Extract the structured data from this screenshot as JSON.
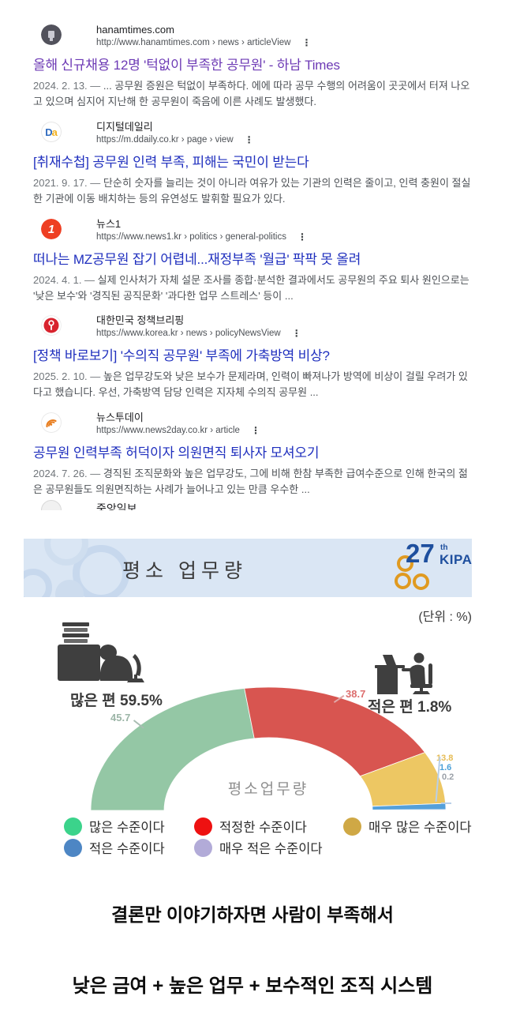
{
  "search": {
    "more_menu_glyph": "⋮",
    "results": [
      {
        "source": "hanamtimes.com",
        "url": "http://www.hanamtimes.com › news › articleView",
        "favicon": "hanamtimes-favicon",
        "visited": true,
        "title": "올해 신규채용 12명 '턱없이 부족한 공무원' - 하남 Times",
        "date": "2024. 2. 13.",
        "snippet": "... 공무원 증원은 턱없이 부족하다. 에에 따라 공무 수행의 어려움이 곳곳에서 터져 나오고 있으며 심지어 지난해 한 공무원이 죽음에 이른 사례도 발생했다."
      },
      {
        "source": "디지털데일리",
        "url": "https://m.ddaily.co.kr › page › view",
        "favicon": "ddaily-favicon",
        "visited": false,
        "title": "[취재수첩] 공무원 인력 부족, 피해는 국민이 받는다",
        "date": "2021. 9. 17.",
        "snippet": "단순히 숫자를 늘리는 것이 아니라 여유가 있는 기관의 인력은 줄이고, 인력 충원이 절실한 기관에 이동 배치하는 등의 유연성도 발휘할 필요가 있다."
      },
      {
        "source": "뉴스1",
        "url": "https://www.news1.kr › politics › general-politics",
        "favicon": "news1-favicon",
        "visited": false,
        "title": "떠나는 MZ공무원 잡기 어렵네...재정부족 '월급' 팍팍 못 올려",
        "date": "2024. 4. 1.",
        "snippet": "실제 인사처가 자체 설문 조사를 종합·분석한 결과에서도 공무원의 주요 퇴사 원인으로는 '낮은 보수'와 '경직된 공직문화' '과다한 업무 스트레스' 등이 ..."
      },
      {
        "source": "대한민국 정책브리핑",
        "url": "https://www.korea.kr › news › policyNewsView",
        "favicon": "korea-policy-favicon",
        "visited": false,
        "title": "[정책 바로보기] '수의직 공무원' 부족에 가축방역 비상?",
        "date": "2025. 2. 10.",
        "snippet": "높은 업무강도와 낮은 보수가 문제라며, 인력이 빠져나가 방역에 비상이 걸릴 우려가 있다고 했습니다. 우선, 가축방역 담당 인력은 지자체 수의직 공무원 ..."
      },
      {
        "source": "뉴스투데이",
        "url": "https://www.news2day.co.kr › article",
        "favicon": "news2day-favicon",
        "visited": false,
        "title": "공무원 인력부족 허덕이자 의원면직 퇴사자 모셔오기",
        "date": "2024. 7. 26.",
        "snippet": "경직된 조직문화와 높은 업무강도, 그에 비해 한참 부족한 급여수준으로 인해 한국의 젊은 공무원들도 의원면직하는 사례가 늘어나고 있는 만큼 우수한 ..."
      }
    ],
    "partial_result": {
      "source": "중앙일보",
      "favicon": "joongang-favicon"
    }
  },
  "chart": {
    "header_title": "평소 업무량",
    "unit_label": "(단위 : %)",
    "logo": {
      "number": "27",
      "suffix": "th",
      "org": "KIPA"
    }
  },
  "chart_data": {
    "type": "pie",
    "subtype": "semi-donut-gauge",
    "title": "평소 업무량",
    "unit": "%",
    "center_label": "평소업무량",
    "start_angle_deg": 180,
    "end_angle_deg": 0,
    "legend_position": "bottom",
    "segments": [
      {
        "label": "많은 수준이다",
        "value": 45.7,
        "color": "#94c7a5",
        "legend_color": "#3bd38b"
      },
      {
        "label": "적정한 수준이다",
        "value": 38.7,
        "color": "#d85550",
        "legend_color": "#ee1111"
      },
      {
        "label": "매우 많은 수준이다",
        "value": 13.8,
        "color": "#edc763",
        "legend_color": "#cfa845"
      },
      {
        "label": "적은 수준이다",
        "value": 1.6,
        "color": "#55a0da",
        "legend_color": "#4d86c4"
      },
      {
        "label": "매우 적은 수준이다",
        "value": 0.2,
        "color": "#b9b2d8",
        "legend_color": "#b2abd8"
      }
    ],
    "callouts": {
      "left": "많은 편 59.5%",
      "right": "적은 편 1.8%"
    }
  },
  "footer": {
    "line1": "결론만 이야기하자면 사람이 부족해서",
    "line2": "낮은 금여 + 높은 업무 + 보수적인 조직 시스템"
  }
}
